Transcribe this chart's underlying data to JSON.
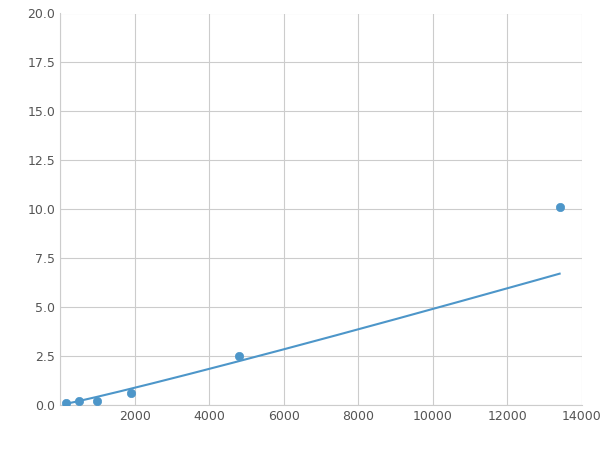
{
  "x": [
    156,
    500,
    1000,
    1900,
    4800,
    13400
  ],
  "y": [
    0.1,
    0.2,
    0.2,
    0.6,
    2.5,
    10.1
  ],
  "line_color": "#4d96c9",
  "marker_color": "#4d96c9",
  "marker_size": 6,
  "xlim": [
    0,
    14000
  ],
  "ylim": [
    0,
    20
  ],
  "xticks": [
    0,
    2000,
    4000,
    6000,
    8000,
    10000,
    12000,
    14000
  ],
  "yticks": [
    0.0,
    2.5,
    5.0,
    7.5,
    10.0,
    12.5,
    15.0,
    17.5,
    20.0
  ],
  "grid_color": "#cccccc",
  "background_color": "#ffffff",
  "figsize": [
    6.0,
    4.5
  ],
  "dpi": 100
}
